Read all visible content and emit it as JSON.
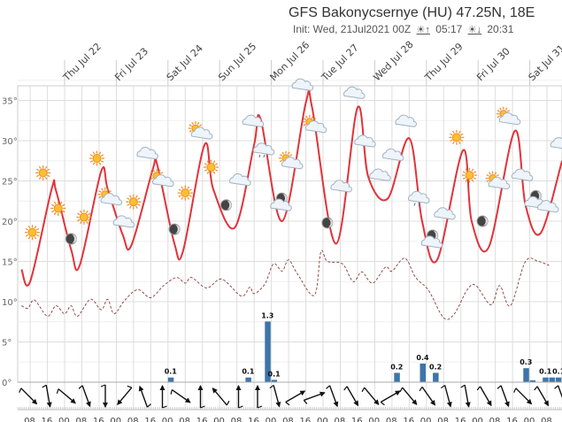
{
  "header": {
    "title": "GFS Bakonycsernye (HU) 47.25N, 18E",
    "init_label": "Init: Wed, 21Jul2021 00Z",
    "sunrise_icon": "sunrise-icon",
    "sunrise": "05:17",
    "sunset_icon": "sunset-icon",
    "sunset": "20:31"
  },
  "chart_data": {
    "type": "line",
    "title": "GFS Bakonycsernye (HU) 47.25N, 18E",
    "xlabel": "",
    "ylabel": "",
    "ylim": [
      0,
      37
    ],
    "grid": true,
    "y_ticks": [
      "0°",
      "5°",
      "10°",
      "15°",
      "20°",
      "25°",
      "30°",
      "35°"
    ],
    "day_labels": [
      {
        "t": "2021-07-22T00:00",
        "label": "Thu Jul 22"
      },
      {
        "t": "2021-07-23T00:00",
        "label": "Fri Jul 23"
      },
      {
        "t": "2021-07-24T00:00",
        "label": "Sat Jul 24"
      },
      {
        "t": "2021-07-25T00:00",
        "label": "Sun Jul 25"
      },
      {
        "t": "2021-07-26T00:00",
        "label": "Mon Jul 26"
      },
      {
        "t": "2021-07-27T00:00",
        "label": "Tue Jul 27"
      },
      {
        "t": "2021-07-28T00:00",
        "label": "Wed Jul 28"
      },
      {
        "t": "2021-07-29T00:00",
        "label": "Thu Jul 29"
      },
      {
        "t": "2021-07-30T00:00",
        "label": "Fri Jul 30"
      },
      {
        "t": "2021-07-31T00:00",
        "label": "Sat Jul 31"
      }
    ],
    "hour_labels": [
      "08",
      "16",
      "00"
    ],
    "series": [
      {
        "kind": "temperature",
        "color": "#e0333a",
        "style": "solid",
        "points": [
          [
            "2021-07-21T04:00",
            14
          ],
          [
            "2021-07-21T08:00",
            12.5
          ],
          [
            "2021-07-21T18:00",
            24
          ],
          [
            "2021-07-21T20:00",
            23.8
          ],
          [
            "2021-07-22T03:00",
            16.5
          ],
          [
            "2021-07-22T07:00",
            14.5
          ],
          [
            "2021-07-22T17:00",
            26.2
          ],
          [
            "2021-07-22T20:00",
            24
          ],
          [
            "2021-07-23T03:00",
            18.3
          ],
          [
            "2021-07-23T07:00",
            17
          ],
          [
            "2021-07-23T17:00",
            26.5
          ],
          [
            "2021-07-23T19:00",
            27
          ],
          [
            "2021-07-24T03:00",
            17.2
          ],
          [
            "2021-07-24T07:00",
            16.3
          ],
          [
            "2021-07-24T17:00",
            29.5
          ],
          [
            "2021-07-24T21:00",
            24
          ],
          [
            "2021-07-25T07:00",
            19.2
          ],
          [
            "2021-07-25T16:00",
            29.5
          ],
          [
            "2021-07-25T19:00",
            32.7
          ],
          [
            "2021-07-26T05:00",
            20
          ],
          [
            "2021-07-26T16:00",
            34.7
          ],
          [
            "2021-07-26T19:00",
            34
          ],
          [
            "2021-07-27T06:00",
            17.2
          ],
          [
            "2021-07-27T16:00",
            34.1
          ],
          [
            "2021-07-27T21:00",
            25.5
          ],
          [
            "2021-07-28T06:00",
            22.8
          ],
          [
            "2021-07-28T16:00",
            30.3
          ],
          [
            "2021-07-28T22:00",
            20
          ],
          [
            "2021-07-29T05:00",
            15.2
          ],
          [
            "2021-07-29T17:00",
            28.8
          ],
          [
            "2021-07-29T21:00",
            20
          ],
          [
            "2021-07-30T05:00",
            16.8
          ],
          [
            "2021-07-30T17:00",
            31.2
          ],
          [
            "2021-07-30T22:00",
            22
          ],
          [
            "2021-07-31T05:00",
            18.5
          ],
          [
            "2021-07-31T15:00",
            27.5
          ]
        ]
      },
      {
        "kind": "dew point",
        "color": "#8b3a3a",
        "style": "dashed",
        "points": [
          [
            "2021-07-21T04:00",
            9.5
          ],
          [
            "2021-07-21T07:00",
            9.2
          ],
          [
            "2021-07-21T10:00",
            10.2
          ],
          [
            "2021-07-21T16:00",
            8.2
          ],
          [
            "2021-07-21T20:00",
            9.5
          ],
          [
            "2021-07-22T00:00",
            8.5
          ],
          [
            "2021-07-22T03:00",
            9.5
          ],
          [
            "2021-07-22T06:00",
            8.2
          ],
          [
            "2021-07-22T12:00",
            10.3
          ],
          [
            "2021-07-22T17:00",
            9
          ],
          [
            "2021-07-22T20:00",
            10.3
          ],
          [
            "2021-07-22T23:00",
            8.5
          ],
          [
            "2021-07-23T04:00",
            10.2
          ],
          [
            "2021-07-23T10:00",
            11.5
          ],
          [
            "2021-07-23T16:00",
            10.5
          ],
          [
            "2021-07-23T22:00",
            12
          ],
          [
            "2021-07-24T04:00",
            13
          ],
          [
            "2021-07-24T08:00",
            12.3
          ],
          [
            "2021-07-24T11:00",
            13
          ],
          [
            "2021-07-24T18:00",
            11.7
          ],
          [
            "2021-07-25T01:00",
            12.8
          ],
          [
            "2021-07-25T10:00",
            10.7
          ],
          [
            "2021-07-25T14:00",
            11.8
          ],
          [
            "2021-07-25T16:00",
            11
          ],
          [
            "2021-07-25T21:00",
            12.2
          ],
          [
            "2021-07-26T01:00",
            14.7
          ],
          [
            "2021-07-26T05:00",
            13.8
          ],
          [
            "2021-07-26T08:00",
            15.2
          ],
          [
            "2021-07-26T12:00",
            13.5
          ],
          [
            "2021-07-26T20:00",
            10.8
          ],
          [
            "2021-07-26T23:00",
            16.2
          ],
          [
            "2021-07-27T02:00",
            15
          ],
          [
            "2021-07-27T09:00",
            14.7
          ],
          [
            "2021-07-27T14:00",
            12.5
          ],
          [
            "2021-07-27T18:00",
            13.7
          ],
          [
            "2021-07-27T23:00",
            12.3
          ],
          [
            "2021-07-28T05:00",
            14.3
          ],
          [
            "2021-07-28T08:00",
            13.8
          ],
          [
            "2021-07-28T14:00",
            15.4
          ],
          [
            "2021-07-28T19:00",
            13
          ],
          [
            "2021-07-29T01:00",
            11.4
          ],
          [
            "2021-07-29T08:00",
            8
          ],
          [
            "2021-07-29T13:00",
            8.5
          ],
          [
            "2021-07-29T19:00",
            11.5
          ],
          [
            "2021-07-29T23:00",
            12
          ],
          [
            "2021-07-30T06:00",
            9.6
          ],
          [
            "2021-07-30T10:00",
            12
          ],
          [
            "2021-07-30T15:00",
            9.5
          ],
          [
            "2021-07-30T22:00",
            15
          ],
          [
            "2021-07-31T04:00",
            15
          ],
          [
            "2021-07-31T09:00",
            14.5
          ]
        ]
      }
    ],
    "precipitation": {
      "color": "#3d75a8",
      "unit": "mm",
      "bars": [
        {
          "t": "2021-07-24T00:00",
          "value": 0.1,
          "label": "0.1"
        },
        {
          "t": "2021-07-25T12:00",
          "value": 0.1,
          "label": "0.1"
        },
        {
          "t": "2021-07-25T21:00",
          "value": 1.3,
          "label": "1.3"
        },
        {
          "t": "2021-07-26T00:00",
          "value": 0.05,
          "label": "0.1"
        },
        {
          "t": "2021-07-28T09:00",
          "value": 0.2,
          "label": "0.2"
        },
        {
          "t": "2021-07-28T21:00",
          "value": 0.4,
          "label": "0.4"
        },
        {
          "t": "2021-07-29T03:00",
          "value": 0.2,
          "label": "0.2"
        },
        {
          "t": "2021-07-30T21:00",
          "value": 0.3,
          "label": "0.3"
        },
        {
          "t": "2021-07-31T00:00",
          "value": 0.04,
          "label": ""
        },
        {
          "t": "2021-07-31T06:00",
          "value": 0.1,
          "label": "0.1"
        },
        {
          "t": "2021-07-31T09:00",
          "value": 0.1,
          "label": "0.1"
        },
        {
          "t": "2021-07-31T12:00",
          "value": 0.1,
          "label": ""
        }
      ]
    },
    "wind_directions_deg": [
      135,
      170,
      130,
      160,
      180,
      220,
      340,
      0,
      125,
      0,
      320,
      0,
      0,
      165,
      60,
      70,
      160,
      150,
      140,
      60,
      140,
      145,
      165,
      170,
      150,
      160,
      135,
      150,
      160
    ],
    "weather_icons": [
      {
        "t": "2021-07-21T09:00",
        "v": 18.6,
        "icon": "sun"
      },
      {
        "t": "2021-07-21T14:00",
        "v": 26,
        "icon": "sun"
      },
      {
        "t": "2021-07-21T21:00",
        "v": 21.6,
        "icon": "sun"
      },
      {
        "t": "2021-07-22T03:00",
        "v": 17.8,
        "icon": "moon"
      },
      {
        "t": "2021-07-22T09:00",
        "v": 20.5,
        "icon": "sun"
      },
      {
        "t": "2021-07-22T15:00",
        "v": 27.8,
        "icon": "sun"
      },
      {
        "t": "2021-07-22T20:00",
        "v": 23,
        "icon": "sun-cloud"
      },
      {
        "t": "2021-07-23T03:00",
        "v": 20,
        "icon": "cloud"
      },
      {
        "t": "2021-07-23T08:00",
        "v": 22.4,
        "icon": "sun"
      },
      {
        "t": "2021-07-23T14:00",
        "v": 28.5,
        "icon": "cloud"
      },
      {
        "t": "2021-07-23T20:00",
        "v": 25.3,
        "icon": "sun-cloud"
      },
      {
        "t": "2021-07-24T03:00",
        "v": 19,
        "icon": "moon"
      },
      {
        "t": "2021-07-24T08:00",
        "v": 23.5,
        "icon": "sun"
      },
      {
        "t": "2021-07-24T14:00",
        "v": 31.2,
        "icon": "sun-cloud"
      },
      {
        "t": "2021-07-24T20:00",
        "v": 26.7,
        "icon": "sun"
      },
      {
        "t": "2021-07-25T03:00",
        "v": 22,
        "icon": "moon"
      },
      {
        "t": "2021-07-25T09:00",
        "v": 25.2,
        "icon": "cloud"
      },
      {
        "t": "2021-07-25T15:00",
        "v": 32.5,
        "icon": "cloud"
      },
      {
        "t": "2021-07-25T20:00",
        "v": 28.8,
        "icon": "rain-cloud"
      },
      {
        "t": "2021-07-26T04:00",
        "v": 22.4,
        "icon": "moon-cloud"
      },
      {
        "t": "2021-07-26T08:00",
        "v": 27.5,
        "icon": "sun-cloud"
      },
      {
        "t": "2021-07-26T14:00",
        "v": 37,
        "icon": "cloud"
      },
      {
        "t": "2021-07-26T19:00",
        "v": 32,
        "icon": "sun-cloud"
      },
      {
        "t": "2021-07-27T02:00",
        "v": 19.8,
        "icon": "moon"
      },
      {
        "t": "2021-07-27T08:00",
        "v": 24.4,
        "icon": "cloud"
      },
      {
        "t": "2021-07-27T14:00",
        "v": 36,
        "icon": "cloud"
      },
      {
        "t": "2021-07-27T19:00",
        "v": 30,
        "icon": "cloud"
      },
      {
        "t": "2021-07-28T02:00",
        "v": 25.8,
        "icon": "cloud"
      },
      {
        "t": "2021-07-28T08:00",
        "v": 28.3,
        "icon": "cloud"
      },
      {
        "t": "2021-07-28T14:00",
        "v": 32.5,
        "icon": "cloud"
      },
      {
        "t": "2021-07-28T20:00",
        "v": 22.8,
        "icon": "rain-cloud"
      },
      {
        "t": "2021-07-29T02:00",
        "v": 17.8,
        "icon": "moon-cloud"
      },
      {
        "t": "2021-07-29T08:00",
        "v": 21,
        "icon": "cloud"
      },
      {
        "t": "2021-07-29T14:00",
        "v": 30.4,
        "icon": "sun"
      },
      {
        "t": "2021-07-29T20:00",
        "v": 25.7,
        "icon": "sun"
      },
      {
        "t": "2021-07-30T02:00",
        "v": 20,
        "icon": "moon"
      },
      {
        "t": "2021-07-30T08:00",
        "v": 25,
        "icon": "sun-cloud"
      },
      {
        "t": "2021-07-30T13:00",
        "v": 33,
        "icon": "sun-cloud"
      },
      {
        "t": "2021-07-30T20:00",
        "v": 25.8,
        "icon": "cloud"
      },
      {
        "t": "2021-07-31T02:00",
        "v": 22.7,
        "icon": "moon-cloud"
      },
      {
        "t": "2021-07-31T08:00",
        "v": 21.9,
        "icon": "cloud"
      },
      {
        "t": "2021-07-31T14:00",
        "v": 29.7,
        "icon": "cloud"
      }
    ]
  }
}
